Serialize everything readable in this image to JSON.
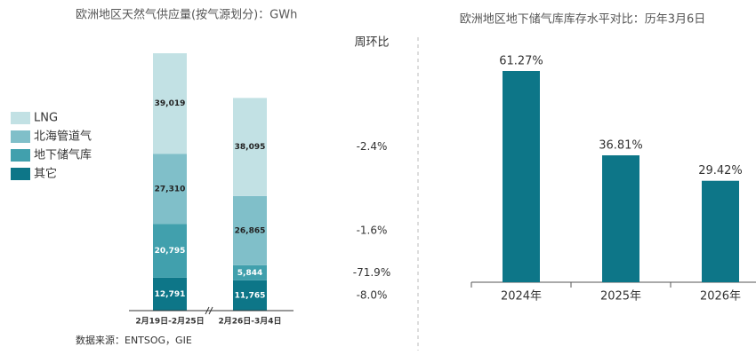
{
  "chart_data": [
    {
      "type": "stacked-bar",
      "title": "欧洲地区天然气供应量(按气源划分)：GWh",
      "categories": [
        "2月19日-2月25日",
        "2月26日-3月4日"
      ],
      "series": [
        {
          "name": "LNG",
          "color": "#c2e1e4",
          "values": [
            39019,
            38095
          ],
          "value_labels": [
            "39,019",
            "38,095"
          ]
        },
        {
          "name": "北海管道气",
          "color": "#80bfc9",
          "values": [
            27310,
            26865
          ],
          "value_labels": [
            "27,310",
            "26,865"
          ]
        },
        {
          "name": "地下储气库",
          "color": "#41a0ad",
          "values": [
            20795,
            5844
          ],
          "value_labels": [
            "20,795",
            "5,844"
          ]
        },
        {
          "name": "其它",
          "color": "#0d7688",
          "values": [
            12791,
            11765
          ],
          "value_labels": [
            "12,791",
            "11,765"
          ]
        }
      ],
      "change_title": "周环比",
      "change": [
        -2.4,
        -1.6,
        -71.9,
        -8.0
      ],
      "change_labels": [
        "-2.4%",
        "-1.6%",
        "-71.9%",
        "-8.0%"
      ],
      "legend": "left",
      "source": "数据来源：ENTSOG，GIE"
    },
    {
      "type": "bar",
      "title": "欧洲地区地下储气库库存水平对比：历年3月6日",
      "categories": [
        "2024年",
        "2025年",
        "2026年"
      ],
      "values": [
        61.27,
        36.81,
        29.42
      ],
      "value_labels": [
        "61.27%",
        "36.81%",
        "29.42%"
      ],
      "color": "#0d7688"
    }
  ]
}
